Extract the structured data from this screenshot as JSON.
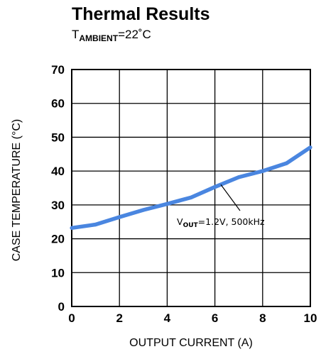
{
  "chart_data": {
    "type": "line",
    "title": "Thermal Results",
    "subtitle": {
      "main": "T",
      "sub": "AMBIENT",
      "rest": "=22˚C"
    },
    "xlabel": "OUTPUT CURRENT (A)",
    "ylabel": "CASE TEMPERATURE (°C)",
    "xlim": [
      0,
      10
    ],
    "ylim": [
      0,
      70
    ],
    "x_ticks": [
      "0",
      "2",
      "4",
      "6",
      "8",
      "10"
    ],
    "y_ticks": [
      "0",
      "10",
      "20",
      "30",
      "40",
      "50",
      "60",
      "70"
    ],
    "grid": true,
    "series": [
      {
        "color": "#4a86e0",
        "x": [
          0,
          1,
          2,
          3,
          4,
          5,
          6,
          7,
          8,
          9,
          10
        ],
        "values": [
          23.2,
          24.2,
          26.4,
          28.5,
          30.3,
          32.2,
          35.3,
          38.2,
          40.0,
          42.3,
          47.0
        ]
      }
    ],
    "annotation": {
      "main": "V",
      "sub": "OUT",
      "rest": "=1.2V, 500kHz",
      "points_to": {
        "x": 6.25,
        "y": 36
      }
    }
  }
}
